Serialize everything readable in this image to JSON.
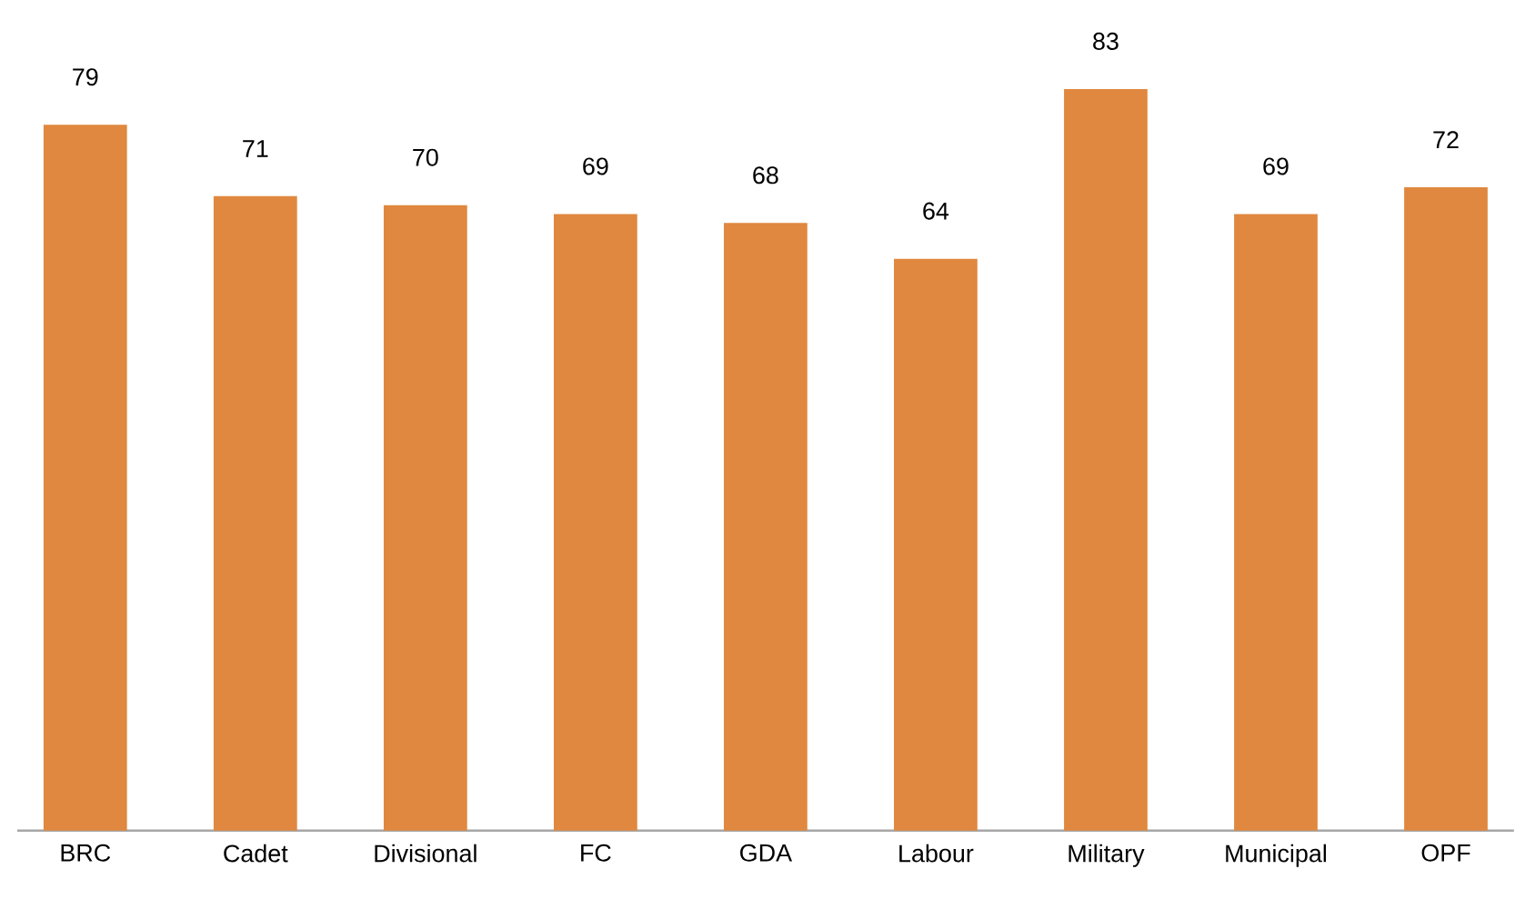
{
  "chart_data": {
    "type": "bar",
    "categories": [
      "BRC",
      "Cadet",
      "Divisional",
      "FC",
      "GDA",
      "Labour",
      "Military",
      "Municipal",
      "OPF"
    ],
    "values": [
      79,
      71,
      70,
      69,
      68,
      64,
      83,
      69,
      72
    ],
    "color": "#e0883f",
    "tick_labels": "x",
    "data_labels": true
  }
}
